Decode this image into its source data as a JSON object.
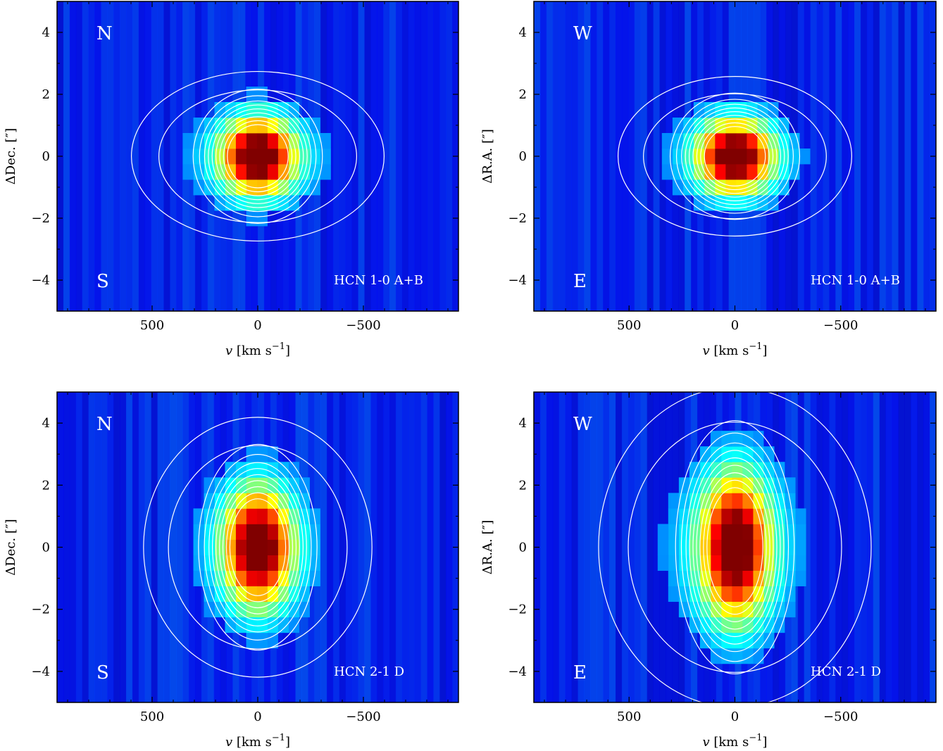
{
  "chart_data": [
    {
      "type": "heatmap",
      "panel": "top-left",
      "xlabel_var": "v",
      "xlabel_unit": "[km s",
      "xlabel_exp": "−1",
      "xlabel_close": "]",
      "ylabel": "ΔDec. [″]",
      "xlim": [
        950,
        -950
      ],
      "ylim": [
        -5,
        5
      ],
      "xticks": [
        {
          "v": 500,
          "label": "500"
        },
        {
          "v": 0,
          "label": "0"
        },
        {
          "v": -500,
          "label": "−500"
        }
      ],
      "yticks": [
        {
          "v": 4,
          "label": "4"
        },
        {
          "v": 2,
          "label": "2"
        },
        {
          "v": 0,
          "label": "0"
        },
        {
          "v": -2,
          "label": "−2"
        },
        {
          "v": -4,
          "label": "−4"
        }
      ],
      "label_top": "N",
      "label_bottom": "S",
      "line_label": "HCN 1-0 A+B",
      "peak": {
        "v": 0,
        "offset": 0,
        "sigma_v": 120,
        "sigma_offset": 0.85
      },
      "extended_width_v": 520,
      "colormap": "jet",
      "contours": "white"
    },
    {
      "type": "heatmap",
      "panel": "top-right",
      "xlabel_var": "v",
      "xlabel_unit": "[km s",
      "xlabel_exp": "−1",
      "xlabel_close": "]",
      "ylabel": "ΔR.A. [″]",
      "xlim": [
        950,
        -950
      ],
      "ylim": [
        -5,
        5
      ],
      "xticks": [
        {
          "v": 500,
          "label": "500"
        },
        {
          "v": 0,
          "label": "0"
        },
        {
          "v": -500,
          "label": "−500"
        }
      ],
      "yticks": [
        {
          "v": 4,
          "label": "4"
        },
        {
          "v": 2,
          "label": "2"
        },
        {
          "v": 0,
          "label": "0"
        },
        {
          "v": -2,
          "label": "−2"
        },
        {
          "v": -4,
          "label": "−4"
        }
      ],
      "label_top": "W",
      "label_bottom": "E",
      "line_label": "HCN 1-0 A+B",
      "peak": {
        "v": 0,
        "offset": 0,
        "sigma_v": 120,
        "sigma_offset": 0.8
      },
      "extended_width_v": 480,
      "colormap": "jet",
      "contours": "white"
    },
    {
      "type": "heatmap",
      "panel": "bottom-left",
      "xlabel_var": "v",
      "xlabel_unit": "[km s",
      "xlabel_exp": "−1",
      "xlabel_close": "]",
      "ylabel": "ΔDec. [″]",
      "xlim": [
        950,
        -950
      ],
      "ylim": [
        -5,
        5
      ],
      "xticks": [
        {
          "v": 500,
          "label": "500"
        },
        {
          "v": 0,
          "label": "0"
        },
        {
          "v": -500,
          "label": "−500"
        }
      ],
      "yticks": [
        {
          "v": 4,
          "label": "4"
        },
        {
          "v": 2,
          "label": "2"
        },
        {
          "v": 0,
          "label": "0"
        },
        {
          "v": -2,
          "label": "−2"
        },
        {
          "v": -4,
          "label": "−4"
        }
      ],
      "label_top": "N",
      "label_bottom": "S",
      "line_label": "HCN 2-1 D",
      "peak": {
        "v": 0,
        "offset": 0,
        "sigma_v": 110,
        "sigma_offset": 1.3
      },
      "extended_width_v": 470,
      "colormap": "jet",
      "contours": "white"
    },
    {
      "type": "heatmap",
      "panel": "bottom-right",
      "xlabel_var": "v",
      "xlabel_unit": "[km s",
      "xlabel_exp": "−1",
      "xlabel_close": "]",
      "ylabel": "ΔR.A. [″]",
      "xlim": [
        950,
        -950
      ],
      "ylim": [
        -5,
        5
      ],
      "xticks": [
        {
          "v": 500,
          "label": "500"
        },
        {
          "v": 0,
          "label": "0"
        },
        {
          "v": -500,
          "label": "−500"
        }
      ],
      "yticks": [
        {
          "v": 4,
          "label": "4"
        },
        {
          "v": 2,
          "label": "2"
        },
        {
          "v": 0,
          "label": "0"
        },
        {
          "v": -2,
          "label": "−2"
        },
        {
          "v": -4,
          "label": "−4"
        }
      ],
      "label_top": "W",
      "label_bottom": "E",
      "line_label": "HCN 2-1 D",
      "peak": {
        "v": 0,
        "offset": 0,
        "sigma_v": 110,
        "sigma_offset": 1.6
      },
      "extended_width_v": 560,
      "colormap": "jet",
      "contours": "white"
    }
  ]
}
